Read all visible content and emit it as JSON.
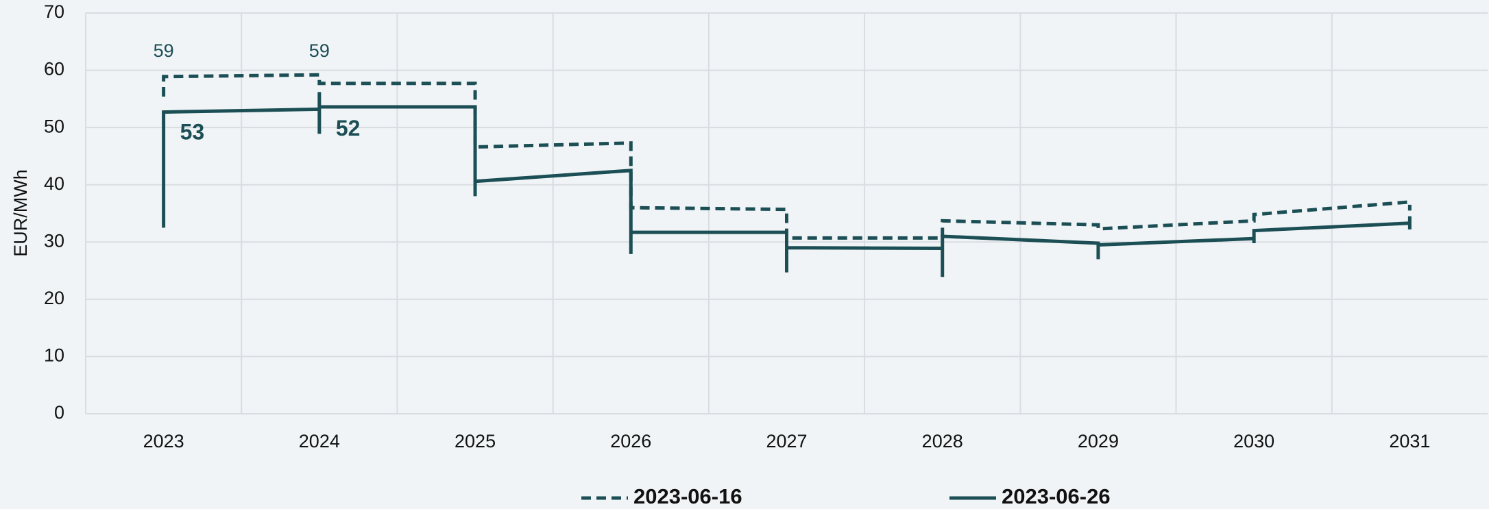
{
  "chart_data": {
    "type": "line",
    "ylabel": "EUR/MWh",
    "xlim": [
      2022.5,
      2031.5
    ],
    "xticks": [
      2023,
      2024,
      2025,
      2026,
      2027,
      2028,
      2029,
      2030,
      2031
    ],
    "ylim": [
      0,
      70
    ],
    "yticks": [
      0,
      10,
      20,
      30,
      40,
      50,
      60,
      70
    ],
    "grid": true,
    "legend": "bottom",
    "series": [
      {
        "name": "2023-06-16",
        "color": "#1c4f55",
        "dash": true,
        "x": [
          2023,
          2023,
          2024,
          2024,
          2025,
          2025,
          2026,
          2026,
          2027,
          2027,
          2028,
          2028,
          2029,
          2029,
          2030,
          2030,
          2031,
          2031
        ],
        "values": [
          55.4,
          58.9,
          59.2,
          57.7,
          57.7,
          46.6,
          47.3,
          36.0,
          35.7,
          30.7,
          30.7,
          33.7,
          33.0,
          32.3,
          33.7,
          34.8,
          37.0,
          35.5
        ],
        "labels": [
          {
            "x": 2023,
            "value": 59
          },
          {
            "x": 2024,
            "value": 59
          }
        ]
      },
      {
        "name": "2023-06-26",
        "color": "#1c4f55",
        "dash": false,
        "x": [
          2023,
          2023,
          2024,
          2024,
          2024,
          2024,
          2025,
          2025,
          2025,
          2026,
          2026,
          2026,
          2027,
          2027,
          2027,
          2028,
          2028,
          2028,
          2029,
          2029,
          2029,
          2030,
          2030,
          2030,
          2031,
          2031,
          2031
        ],
        "values": [
          32.5,
          52.7,
          53.2,
          48.9,
          56.2,
          53.6,
          53.6,
          38.0,
          40.6,
          42.5,
          27.9,
          31.7,
          31.7,
          24.7,
          29.0,
          28.9,
          23.9,
          31.0,
          29.8,
          27.0,
          29.5,
          30.6,
          29.8,
          32.0,
          33.3,
          32.2,
          34.5
        ],
        "labels": [
          {
            "x": 2023,
            "value": 53
          },
          {
            "x": 2024,
            "value": 52
          }
        ]
      }
    ]
  }
}
